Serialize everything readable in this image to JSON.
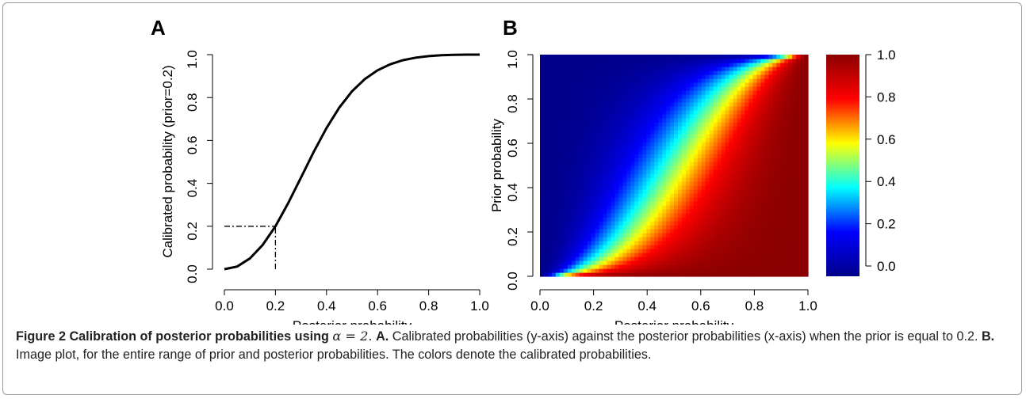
{
  "chart_data": [
    {
      "panel": "A",
      "type": "line",
      "xlabel": "Posterior probability",
      "ylabel": "Calibrated probability (prior=0.2)",
      "xlim": [
        0,
        1
      ],
      "ylim": [
        0,
        1
      ],
      "x_ticks": [
        "0.0",
        "0.2",
        "0.4",
        "0.6",
        "0.8",
        "1.0"
      ],
      "y_ticks": [
        "0.0",
        "0.2",
        "0.4",
        "0.6",
        "0.8",
        "1.0"
      ],
      "grid": false,
      "series": [
        {
          "x": [
            0.0,
            0.05,
            0.1,
            0.15,
            0.2,
            0.25,
            0.3,
            0.35,
            0.4,
            0.45,
            0.5,
            0.55,
            0.6,
            0.65,
            0.7,
            0.75,
            0.8,
            0.85,
            0.9,
            0.95,
            1.0
          ],
          "y": [
            0.0,
            0.012,
            0.05,
            0.113,
            0.2,
            0.308,
            0.427,
            0.547,
            0.658,
            0.753,
            0.829,
            0.886,
            0.927,
            0.955,
            0.974,
            0.986,
            0.993,
            0.997,
            0.999,
            1.0,
            1.0
          ]
        }
      ],
      "reference_lines": [
        {
          "from": [
            0.0,
            0.2
          ],
          "to": [
            0.2,
            0.2
          ],
          "style": "dash-dot"
        },
        {
          "from": [
            0.2,
            0.0
          ],
          "to": [
            0.2,
            0.2
          ],
          "style": "dash-dot"
        }
      ]
    },
    {
      "panel": "B",
      "type": "heatmap",
      "xlabel": "Posterior probability",
      "ylabel": "Prior probability",
      "xlim": [
        0,
        1
      ],
      "ylim": [
        0,
        1
      ],
      "x_ticks": [
        "0.0",
        "0.2",
        "0.4",
        "0.6",
        "0.8",
        "1.0"
      ],
      "y_ticks": [
        "0.0",
        "0.2",
        "0.4",
        "0.6",
        "0.8",
        "1.0"
      ],
      "value": "calibrated probability",
      "alpha": 2,
      "colorbar": {
        "range": [
          0,
          1
        ],
        "ticks": [
          "0.0",
          "0.2",
          "0.4",
          "0.6",
          "0.8",
          "1.0"
        ],
        "colors": [
          "#00008b",
          "#0000ff",
          "#00ffff",
          "#ffff00",
          "#ff0000",
          "#8b0000"
        ]
      }
    }
  ],
  "panel_letters": {
    "a": "A",
    "b": "B"
  },
  "caption": {
    "label": "Figure 2",
    "title_pre": "Calibration of posterior probabilities using",
    "title_math": "α = 2.",
    "a_letter": "A.",
    "a_text": "Calibrated probabilities (y-axis) against the posterior probabilities (x-axis) when the prior is equal to 0.2.",
    "b_letter": "B.",
    "b_text": "Image plot, for the entire range of prior and posterior probabilities. The colors denote the calibrated probabilities."
  }
}
